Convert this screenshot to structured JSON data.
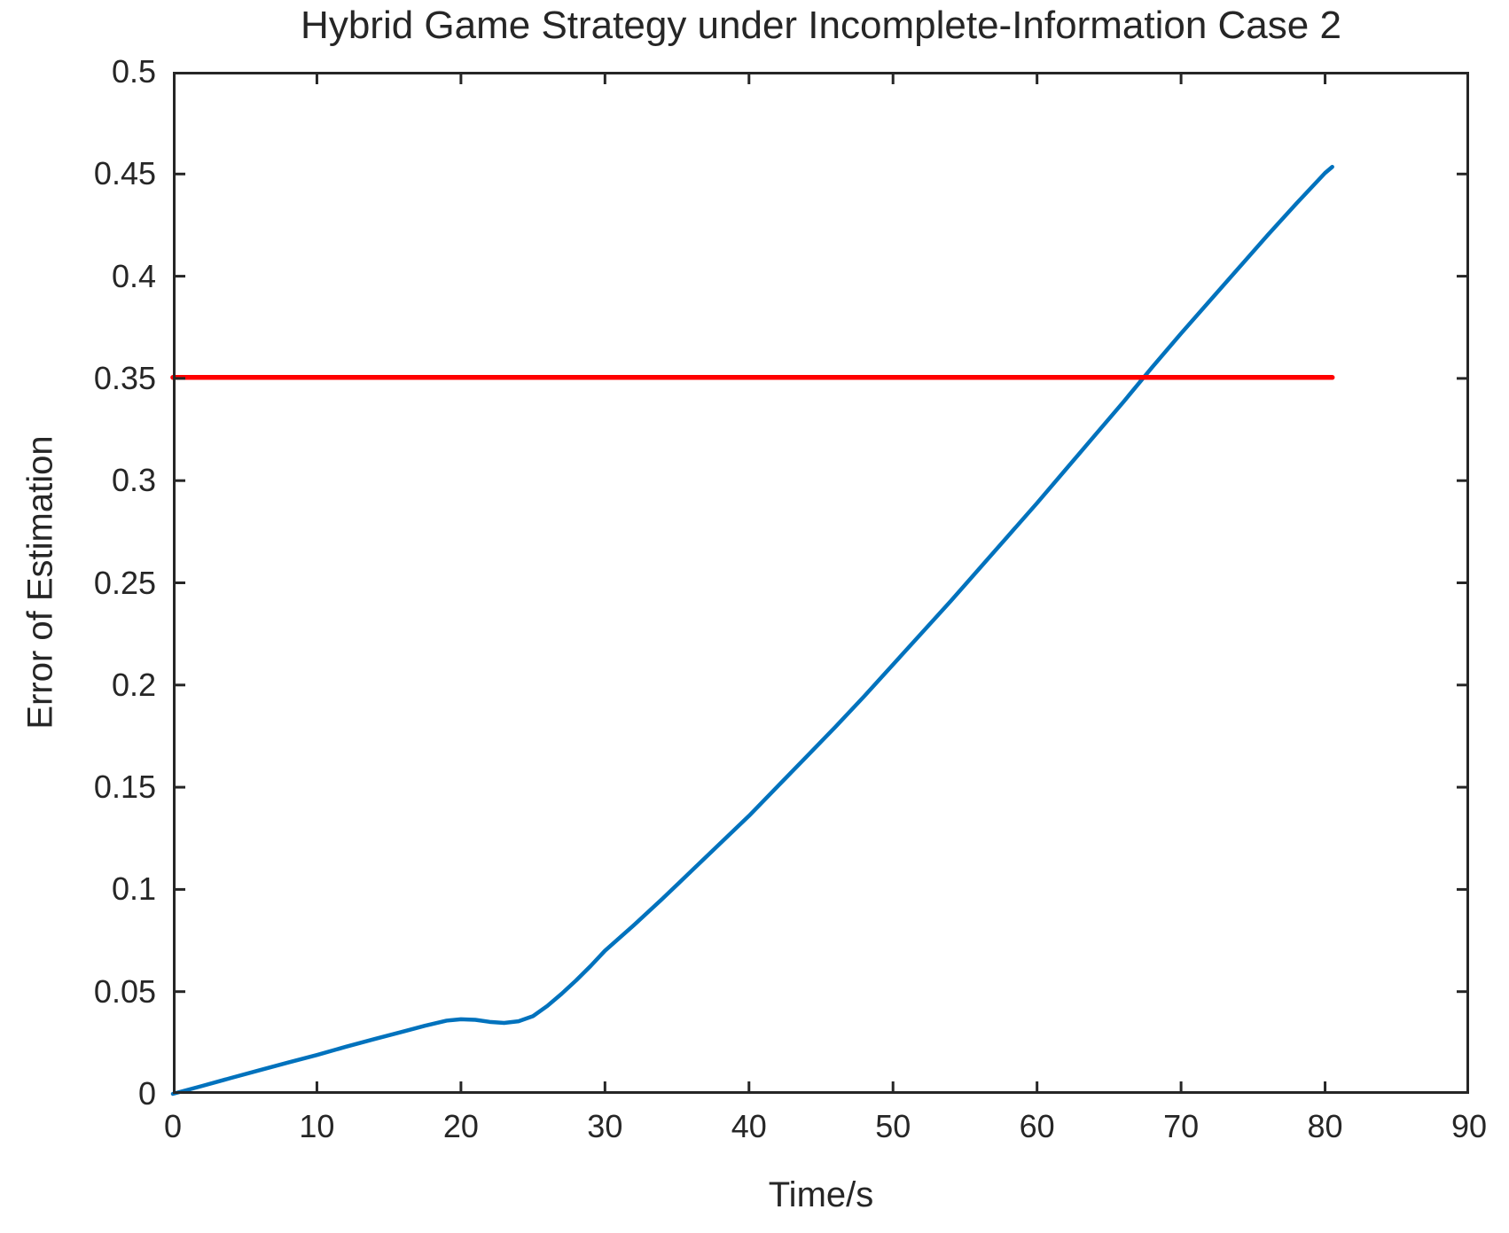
{
  "chart_data": {
    "type": "line",
    "title": "Hybrid Game Strategy under Incomplete-Information Case 2",
    "xlabel": "Time/s",
    "ylabel": "Error of Estimation",
    "xlim": [
      0,
      90
    ],
    "ylim": [
      0,
      0.5
    ],
    "grid": false,
    "legend": "none",
    "axis_color": "#262626",
    "background_color": "#FFFFFF",
    "tick_direction": "in",
    "box": true,
    "x_ticks": [
      0,
      10,
      20,
      30,
      40,
      50,
      60,
      70,
      80,
      90
    ],
    "x_tick_labels": [
      "0",
      "10",
      "20",
      "30",
      "40",
      "50",
      "60",
      "70",
      "80",
      "90"
    ],
    "y_ticks": [
      0,
      0.05,
      0.1,
      0.15,
      0.2,
      0.25,
      0.3,
      0.35,
      0.4,
      0.45,
      0.5
    ],
    "y_tick_labels": [
      "0",
      "0.05",
      "0.1",
      "0.15",
      "0.2",
      "0.25",
      "0.3",
      "0.35",
      "0.4",
      "0.45",
      "0.5"
    ],
    "series": [
      {
        "name": "estimation-error",
        "color": "#0072BD",
        "line_width": 4.5,
        "x": [
          0,
          2,
          4,
          6,
          8,
          10,
          12,
          14,
          16,
          17.5,
          19,
          20,
          21,
          22,
          23,
          24,
          25,
          26,
          27,
          28,
          29,
          30,
          32,
          34,
          36,
          38,
          40,
          42,
          44,
          46,
          48,
          50,
          52,
          54,
          56,
          58,
          60,
          62,
          64,
          66,
          68,
          70,
          72,
          74,
          76,
          78,
          80,
          80.5
        ],
        "y": [
          0,
          0.0038,
          0.0077,
          0.0115,
          0.0153,
          0.019,
          0.023,
          0.0268,
          0.0305,
          0.0333,
          0.0358,
          0.0365,
          0.0362,
          0.0352,
          0.0347,
          0.0355,
          0.038,
          0.043,
          0.049,
          0.0555,
          0.0625,
          0.07,
          0.0825,
          0.0955,
          0.109,
          0.1225,
          0.136,
          0.1505,
          0.165,
          0.1795,
          0.1945,
          0.21,
          0.2255,
          0.241,
          0.257,
          0.273,
          0.289,
          0.3055,
          0.322,
          0.3385,
          0.3555,
          0.372,
          0.388,
          0.404,
          0.42,
          0.4355,
          0.4505,
          0.4535
        ]
      },
      {
        "name": "error-threshold",
        "color": "#FF0000",
        "line_width": 5.5,
        "x": [
          0,
          80.5
        ],
        "y": [
          0.3505,
          0.3505
        ]
      }
    ]
  }
}
